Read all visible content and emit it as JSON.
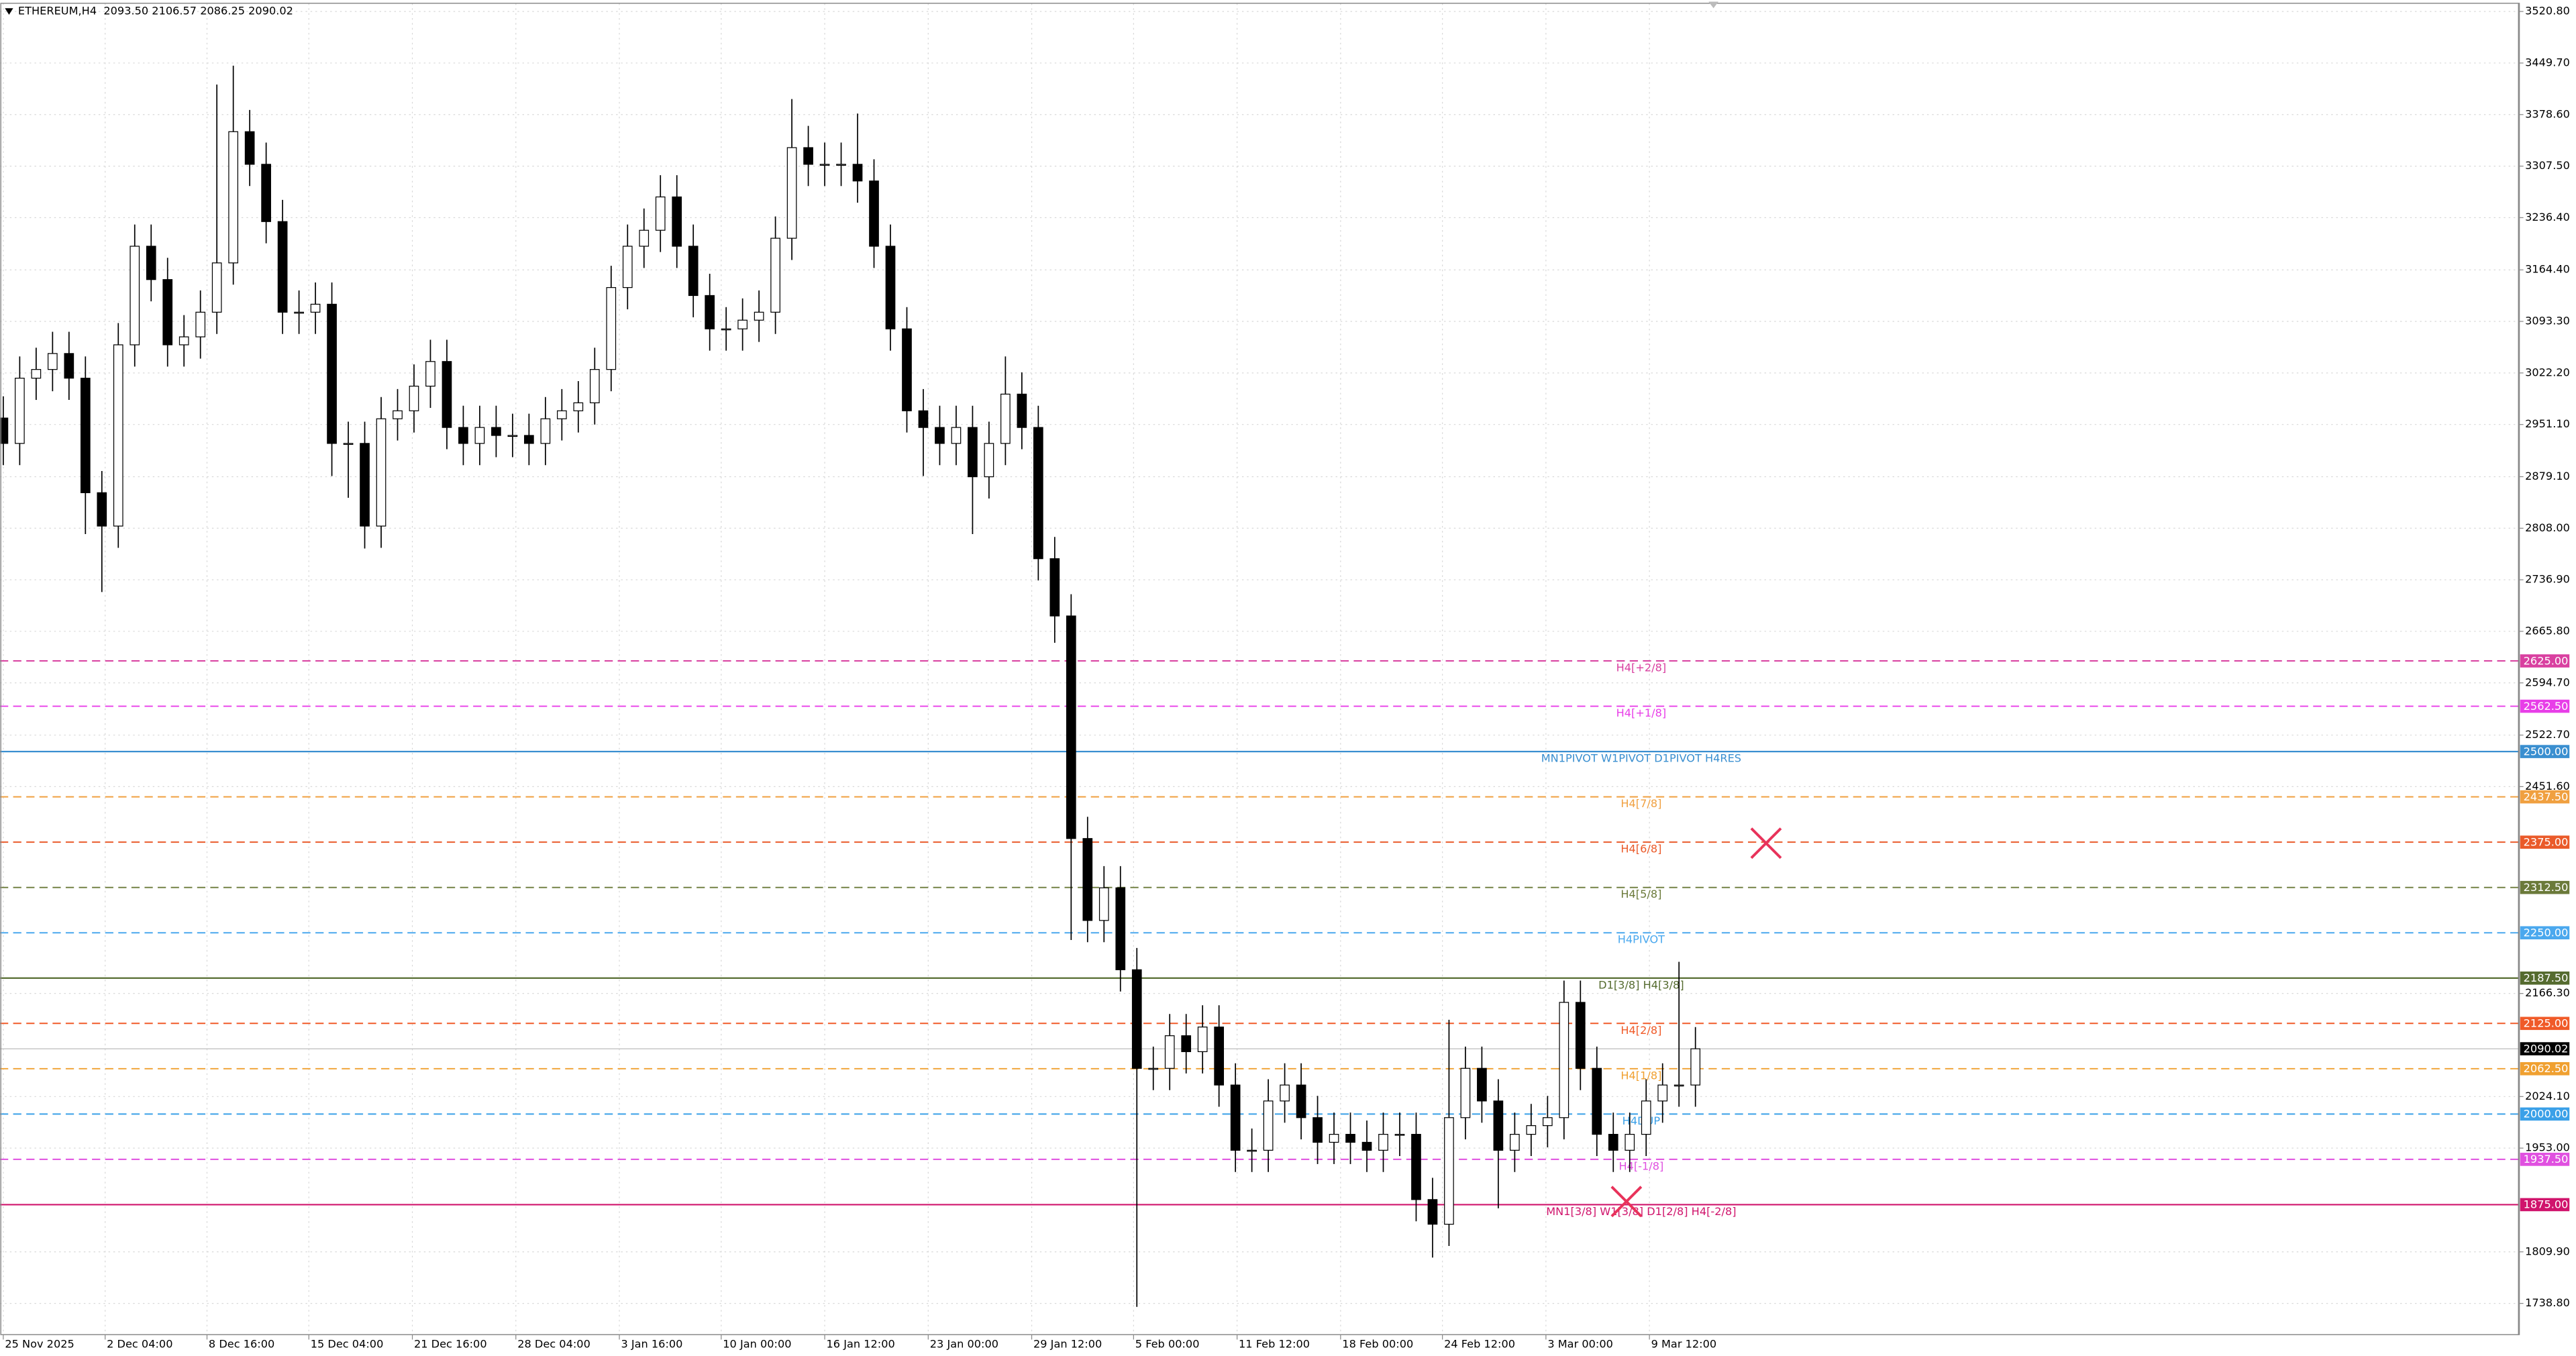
{
  "chart_data": {
    "type": "candlestick",
    "title": "ETHEREUM,H4  2093.50 2106.57 2086.25 2090.02",
    "series": {
      "open": [
        2960,
        2925,
        3015,
        3027,
        3049,
        3015,
        2857,
        2811,
        3061,
        3197,
        3151,
        3061,
        3072,
        3106,
        3174,
        3355,
        3310,
        3231,
        3106,
        3106,
        3117,
        2925,
        2925,
        2811,
        2959,
        2970,
        3004,
        3038,
        2947,
        2925,
        2947,
        2936,
        2936,
        2925,
        2959,
        2970,
        2981,
        3027,
        3140,
        3197,
        3219,
        3265,
        3197,
        3129,
        3083,
        3083,
        3095,
        3106,
        3208,
        3333,
        3310,
        3310,
        3310,
        3287,
        3197,
        3083,
        2970,
        2947,
        2925,
        2947,
        2879,
        2925,
        2993,
        2947,
        2766,
        2687,
        2380,
        2267,
        2312,
        2199,
        2063,
        2063,
        2108,
        2086,
        2120,
        2040,
        1950,
        1950,
        2018,
        2040,
        1995,
        1961,
        1972,
        1961,
        1950,
        1972,
        1972,
        1882,
        1848,
        1995,
        2063,
        2018,
        1950,
        1972,
        1984,
        1995,
        2154,
        2063,
        1972,
        1950,
        1972,
        2018,
        2040,
        2040
      ],
      "high": [
        2990,
        3045,
        3057,
        3079,
        3079,
        3045,
        2887,
        3091,
        3227,
        3227,
        3181,
        3102,
        3136,
        3420,
        3446,
        3385,
        3340,
        3261,
        3136,
        3147,
        3147,
        2955,
        2955,
        2989,
        3000,
        3034,
        3068,
        3068,
        2977,
        2977,
        2977,
        2966,
        2966,
        2989,
        3000,
        3011,
        3057,
        3170,
        3227,
        3249,
        3295,
        3295,
        3227,
        3159,
        3113,
        3125,
        3136,
        3238,
        3400,
        3363,
        3340,
        3340,
        3380,
        3317,
        3227,
        3113,
        3000,
        2977,
        2977,
        2977,
        2955,
        3045,
        3023,
        2977,
        2796,
        2717,
        2410,
        2342,
        2342,
        2229,
        2093,
        2138,
        2138,
        2150,
        2150,
        2070,
        1980,
        2048,
        2070,
        2070,
        2025,
        2002,
        2002,
        1991,
        2002,
        2002,
        2002,
        1912,
        2130,
        2093,
        2093,
        2048,
        2002,
        2014,
        2025,
        2184,
        2184,
        2093,
        2002,
        2002,
        2048,
        2070,
        2210,
        2120
      ],
      "low": [
        2895,
        2895,
        2985,
        2997,
        2985,
        2800,
        2720,
        2781,
        3031,
        3121,
        3031,
        3031,
        3042,
        3076,
        3144,
        3280,
        3201,
        3076,
        3076,
        3076,
        2880,
        2850,
        2780,
        2781,
        2929,
        2940,
        2974,
        2917,
        2895,
        2895,
        2906,
        2906,
        2895,
        2895,
        2929,
        2940,
        2951,
        2997,
        3110,
        3167,
        3189,
        3167,
        3099,
        3053,
        3053,
        3053,
        3065,
        3076,
        3178,
        3280,
        3280,
        3280,
        3257,
        3167,
        3053,
        2940,
        2880,
        2895,
        2895,
        2800,
        2849,
        2895,
        2917,
        2736,
        2650,
        2240,
        2237,
        2237,
        2169,
        1734,
        2033,
        2033,
        2056,
        2056,
        2010,
        1920,
        1920,
        1920,
        1988,
        1965,
        1931,
        1931,
        1931,
        1920,
        1920,
        1942,
        1852,
        1802,
        1818,
        1965,
        1988,
        1870,
        1920,
        1942,
        1954,
        1965,
        2033,
        1942,
        1920,
        1920,
        1942,
        1988,
        2010,
        2010
      ],
      "close": [
        2925,
        3015,
        3027,
        3049,
        3015,
        2857,
        2811,
        3061,
        3197,
        3151,
        3061,
        3072,
        3106,
        3174,
        3355,
        3310,
        3231,
        3106,
        3106,
        3117,
        2925,
        2925,
        2811,
        2959,
        2970,
        3004,
        3038,
        2947,
        2925,
        2947,
        2936,
        2936,
        2925,
        2959,
        2970,
        2981,
        3027,
        3140,
        3197,
        3219,
        3265,
        3197,
        3129,
        3083,
        3083,
        3095,
        3106,
        3208,
        3333,
        3310,
        3310,
        3310,
        3287,
        3197,
        3083,
        2970,
        2947,
        2925,
        2947,
        2879,
        2925,
        2993,
        2947,
        2766,
        2687,
        2380,
        2267,
        2312,
        2199,
        2063,
        2063,
        2108,
        2086,
        2120,
        2040,
        1950,
        1950,
        2018,
        2040,
        1995,
        1961,
        1972,
        1961,
        1950,
        1972,
        1972,
        1882,
        1848,
        1995,
        2063,
        2018,
        1950,
        1972,
        1984,
        1995,
        2154,
        2063,
        1972,
        1950,
        1972,
        2018,
        2040,
        2040,
        2090
      ]
    },
    "xlim": [
      -0.2,
      153.1
    ],
    "ylim": [
      1695.7,
      3532.1
    ],
    "xticks": [
      {
        "value": 0,
        "label": "25 Nov 2025"
      },
      {
        "value": 6.2,
        "label": "2 Dec 04:00"
      },
      {
        "value": 12.4,
        "label": "8 Dec 16:00"
      },
      {
        "value": 18.6,
        "label": "15 Dec 04:00"
      },
      {
        "value": 24.9,
        "label": "21 Dec 16:00"
      },
      {
        "value": 31.2,
        "label": "28 Dec 04:00"
      },
      {
        "value": 37.5,
        "label": "3 Jan 16:00"
      },
      {
        "value": 43.7,
        "label": "10 Jan 00:00"
      },
      {
        "value": 50,
        "label": "16 Jan 12:00"
      },
      {
        "value": 56.3,
        "label": "23 Jan 00:00"
      },
      {
        "value": 62.6,
        "label": "29 Jan 12:00"
      },
      {
        "value": 68.8,
        "label": "5 Feb 00:00"
      },
      {
        "value": 75.1,
        "label": "11 Feb 12:00"
      },
      {
        "value": 81.4,
        "label": "18 Feb 00:00"
      },
      {
        "value": 87.6,
        "label": "24 Feb 12:00"
      },
      {
        "value": 93.9,
        "label": "3 Mar 00:00"
      },
      {
        "value": 100.2,
        "label": "9 Mar 12:00"
      }
    ],
    "yticks": [
      {
        "value": 3520.8,
        "label": "3520.80"
      },
      {
        "value": 3449.7,
        "label": "3449.70"
      },
      {
        "value": 3378.6,
        "label": "3378.60"
      },
      {
        "value": 3307.5,
        "label": "3307.50"
      },
      {
        "value": 3236.4,
        "label": "3236.40"
      },
      {
        "value": 3164.4,
        "label": "3164.40"
      },
      {
        "value": 3093.3,
        "label": "3093.30"
      },
      {
        "value": 3022.2,
        "label": "3022.20"
      },
      {
        "value": 2951.1,
        "label": "2951.10"
      },
      {
        "value": 2879.1,
        "label": "2879.10"
      },
      {
        "value": 2808,
        "label": "2808.00"
      },
      {
        "value": 2736.9,
        "label": "2736.90"
      },
      {
        "value": 2665.8,
        "label": "2665.80"
      },
      {
        "value": 2594.7,
        "label": "2594.70"
      },
      {
        "value": 2522.7,
        "label": "2522.70"
      },
      {
        "value": 2451.6,
        "label": "2451.60"
      },
      {
        "value": 2166.3,
        "label": "2166.30"
      },
      {
        "value": 2024.1,
        "label": "2024.10"
      },
      {
        "value": 1953,
        "label": "1953.00"
      },
      {
        "value": 1809.9,
        "label": "1809.90"
      },
      {
        "value": 1738.8,
        "label": "1738.80"
      }
    ],
    "grid": true,
    "levels": [
      {
        "name": "H4[+2/8]",
        "value": 2625,
        "value_label": "2625.00",
        "color": "#d940a0",
        "dashed": true
      },
      {
        "name": "H4[+1/8]",
        "value": 2562.5,
        "value_label": "2562.50",
        "color": "#e83ee8",
        "dashed": true
      },
      {
        "name": "MN1PIVOT W1PIVOT D1PIVOT H4RES",
        "value": 2500,
        "value_label": "2500.00",
        "color": "#3a8fd0",
        "dashed": false
      },
      {
        "name": "H4[7/8]",
        "value": 2437.5,
        "value_label": "2437.50",
        "color": "#f0a040",
        "dashed": true
      },
      {
        "name": "H4[6/8]",
        "value": 2375,
        "value_label": "2375.00",
        "color": "#ea5a2a",
        "dashed": true
      },
      {
        "name": "H4[5/8]",
        "value": 2312.5,
        "value_label": "2312.50",
        "color": "#6b7a3a",
        "dashed": true
      },
      {
        "name": "H4PIVOT",
        "value": 2250,
        "value_label": "2250.00",
        "color": "#4aa8ee",
        "dashed": true
      },
      {
        "name": "D1[3/8] H4[3/8]",
        "value": 2187.5,
        "value_label": "2187.50",
        "color": "#556b2f",
        "dashed": false
      },
      {
        "name": "H4[2/8]",
        "value": 2125,
        "value_label": "2125.00",
        "color": "#f05a28",
        "dashed": true
      },
      {
        "name": "H4[1/8]",
        "value": 2062.5,
        "value_label": "2062.50",
        "color": "#f0a030",
        "dashed": true
      },
      {
        "name": "H4DUP",
        "value": 2000,
        "value_label": "2000.00",
        "color": "#3aa0e8",
        "dashed": true
      },
      {
        "name": "H4[-1/8]",
        "value": 1937.5,
        "value_label": "1937.50",
        "color": "#e050e0",
        "dashed": true
      },
      {
        "name": "MN1[3/8] W1[3/8] D1[2/8] H4[-2/8]",
        "value": 1875,
        "value_label": "1875.00",
        "color": "#d0146c",
        "dashed": false
      }
    ],
    "last_price": {
      "value": 2090.02,
      "label": "2090.02"
    }
  }
}
